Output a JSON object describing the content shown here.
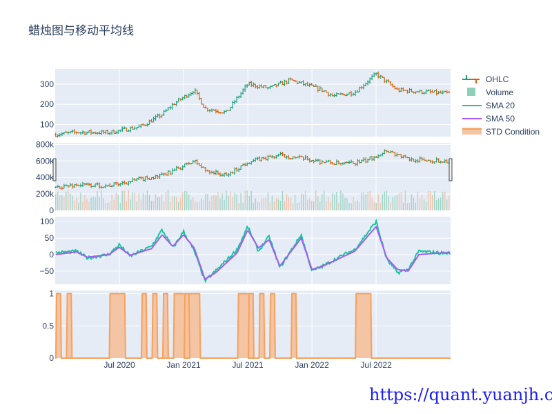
{
  "chart_data": {
    "type": "candlestick",
    "title": "蜡烛图与移动平均线",
    "x_ticks": [
      "Jul 2020",
      "Jan 2021",
      "Jul 2021",
      "Jan 2022",
      "Jul 2022"
    ],
    "legend": [
      "OHLC",
      "Volume",
      "SMA 20",
      "SMA 50",
      "STD Condition"
    ],
    "colors": {
      "increasing": "#1b9e77",
      "decreasing": "#d95f02",
      "volume": "#8ecfb9",
      "sma20": "#17c59c",
      "sma50": "#a35cf0",
      "std": "#f8a05a",
      "std_fill": "#f4c5a4",
      "plot_bg": "#e5ecf6"
    },
    "panels": [
      {
        "name": "price",
        "y_ticks": [
          "100",
          "200",
          "300"
        ],
        "y_range": [
          40,
          375
        ],
        "series": {
          "name": "OHLC",
          "close_anchor_months": [
            "Jan 2020",
            "Mar 2020",
            "Jun 2020",
            "Sep 2020",
            "Nov 2020",
            "Dec 2020",
            "Feb 2021",
            "Mar 2021",
            "May 2021",
            "Jul 2021",
            "Sep 2021",
            "Nov 2021",
            "Feb 2022",
            "Mar 2022",
            "May 2022",
            "Jul 2022",
            "Sep 2022",
            "Dec 2022",
            "Jan 2023"
          ],
          "close": [
            50,
            62,
            60,
            90,
            150,
            200,
            270,
            180,
            160,
            300,
            280,
            320,
            270,
            240,
            260,
            350,
            270,
            260,
            255
          ]
        }
      },
      {
        "name": "volume",
        "y_ticks": [
          "0",
          "200k",
          "400k",
          "600k",
          "800k"
        ],
        "y_range": [
          0,
          820000
        ],
        "series": [
          {
            "name": "Volume",
            "typical_max": 250000
          },
          {
            "name": "OHLC",
            "close_anchor_months": [
              "Jan 2020",
              "Mar 2020",
              "Jun 2020",
              "Sep 2020",
              "Nov 2020",
              "Feb 2021",
              "Mar 2021",
              "May 2021",
              "Jul 2021",
              "Oct 2021",
              "Feb 2022",
              "Apr 2022",
              "Jun 2022",
              "Aug 2022",
              "Oct 2022",
              "Jan 2023"
            ],
            "close": [
              280000,
              310000,
              300000,
              380000,
              420000,
              600000,
              490000,
              420000,
              590000,
              670000,
              590000,
              560000,
              600000,
              730000,
              620000,
              600000
            ]
          }
        ]
      },
      {
        "name": "sma",
        "y_ticks": [
          "−50",
          "0",
          "50",
          "100"
        ],
        "y_range": [
          -90,
          115
        ],
        "series": [
          {
            "name": "SMA 20",
            "anchor_months": [
              "Jan 2020",
              "Mar 2020",
              "Apr 2020",
              "Jun 2020",
              "Jul 2020",
              "Aug 2020",
              "Oct 2020",
              "Nov 2020",
              "Dec 2020",
              "Jan 2021",
              "Feb 2021",
              "Mar 2021",
              "Apr 2021",
              "Jun 2021",
              "Jul 2021",
              "Aug 2021",
              "Sep 2021",
              "Oct 2021",
              "Dec 2021",
              "Jan 2022",
              "Feb 2022",
              "Apr 2022",
              "May 2022",
              "Jul 2022",
              "Aug 2022",
              "Sep 2022",
              "Oct 2022",
              "Nov 2022",
              "Jan 2023"
            ],
            "values": [
              5,
              10,
              -10,
              0,
              30,
              -5,
              25,
              75,
              20,
              70,
              10,
              -80,
              -50,
              15,
              85,
              10,
              55,
              -40,
              60,
              -50,
              -35,
              0,
              15,
              100,
              -15,
              -55,
              -45,
              10,
              5
            ]
          },
          {
            "name": "SMA 50",
            "anchor_months": [
              "Jan 2020",
              "Mar 2020",
              "Apr 2020",
              "Jun 2020",
              "Jul 2020",
              "Aug 2020",
              "Oct 2020",
              "Nov 2020",
              "Dec 2020",
              "Jan 2021",
              "Feb 2021",
              "Mar 2021",
              "Apr 2021",
              "Jun 2021",
              "Jul 2021",
              "Aug 2021",
              "Sep 2021",
              "Oct 2021",
              "Dec 2021",
              "Jan 2022",
              "Feb 2022",
              "Apr 2022",
              "May 2022",
              "Jul 2022",
              "Aug 2022",
              "Sep 2022",
              "Oct 2022",
              "Nov 2022",
              "Jan 2023"
            ],
            "values": [
              0,
              8,
              -8,
              0,
              22,
              -2,
              18,
              60,
              25,
              60,
              20,
              -75,
              -55,
              5,
              75,
              20,
              45,
              -35,
              50,
              -45,
              -35,
              -5,
              10,
              85,
              -10,
              -45,
              -50,
              0,
              5
            ]
          }
        ]
      },
      {
        "name": "std",
        "y_ticks": [
          "0",
          "0.5",
          "1"
        ],
        "y_range": [
          0,
          1.05
        ],
        "series": {
          "name": "STD Condition",
          "active_periods": [
            [
              "Jan 2020",
              "Jan 2020"
            ],
            [
              "Feb 2020",
              "Feb 2020"
            ],
            [
              "Feb 2020",
              "Feb 2020"
            ],
            [
              "Jun 2020",
              "Jul 2020"
            ],
            [
              "Sep 2020",
              "Sep 2020"
            ],
            [
              "Oct 2020",
              "Oct 2020"
            ],
            [
              "Nov 2020",
              "Nov 2020"
            ],
            [
              "Nov 2020",
              "Nov 2020"
            ],
            [
              "Dec 2020",
              "Jan 2021"
            ],
            [
              "Jan 2021",
              "Feb 2021"
            ],
            [
              "Jun 2021",
              "Jul 2021"
            ],
            [
              "Jul 2021",
              "Jul 2021"
            ],
            [
              "Aug 2021",
              "Aug 2021"
            ],
            [
              "Sep 2021",
              "Sep 2021"
            ],
            [
              "Nov 2021",
              "Nov 2021"
            ],
            [
              "May 2022",
              "Jun 2022"
            ]
          ]
        }
      }
    ]
  },
  "watermark": "https://quant.yuanjh.cn"
}
